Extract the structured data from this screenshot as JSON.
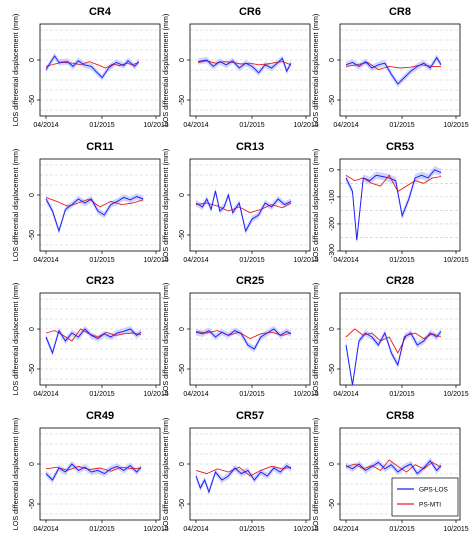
{
  "chart_data": {
    "type": "line",
    "layout": "4x3 grid of small-multiple time-series panels",
    "ylabel": "LOS differential displacement (mm)",
    "x_ticks": [
      "04/2014",
      "01/2015",
      "10/2015"
    ],
    "y_ticks_default": [
      0,
      -50
    ],
    "y_ticks_cr53": [
      0,
      -100,
      -200,
      -300
    ],
    "ylim_default": [
      -70,
      45
    ],
    "ylim_cr53": [
      -300,
      40
    ],
    "xlim": [
      0,
      100
    ],
    "grid": "dashed horizontal",
    "legend": {
      "placement": "bottom-right of last panel",
      "entries": [
        {
          "label": "GPS-LOS",
          "color": "#1f1fff"
        },
        {
          "label": "PS-MTI",
          "color": "#e8211e"
        }
      ]
    },
    "band_color": "#aab4f5",
    "panels": [
      {
        "title": "CR4",
        "row": 0,
        "col": 0,
        "gps": {
          "x": [
            0,
            8,
            12,
            20,
            25,
            30,
            35,
            42,
            46,
            52,
            58,
            65,
            72,
            76,
            82,
            86
          ],
          "y": [
            -12,
            5,
            -3,
            -2,
            -8,
            -1,
            -6,
            -8,
            -14,
            -22,
            -10,
            -3,
            -7,
            -1,
            -8,
            -2
          ]
        },
        "ps": {
          "x": [
            0,
            8,
            15,
            25,
            32,
            40,
            48,
            55,
            62,
            68,
            75,
            80,
            86
          ],
          "y": [
            -8,
            -5,
            -3,
            -4,
            -6,
            -2,
            -6,
            -10,
            -5,
            -7,
            -4,
            -6,
            -3
          ]
        }
      },
      {
        "title": "CR6",
        "row": 0,
        "col": 1,
        "gps": {
          "x": [
            2,
            10,
            16,
            22,
            28,
            34,
            40,
            46,
            52,
            58,
            64,
            70,
            76,
            80,
            84,
            88
          ],
          "y": [
            -2,
            0,
            -8,
            -2,
            -6,
            -1,
            -10,
            -4,
            -8,
            -16,
            -6,
            -10,
            -3,
            2,
            -14,
            -4
          ]
        },
        "ps": {
          "x": [
            2,
            10,
            18,
            26,
            34,
            42,
            50,
            58,
            66,
            74,
            80,
            88
          ],
          "y": [
            -3,
            -1,
            -4,
            -2,
            -3,
            -5,
            -4,
            -6,
            -5,
            -3,
            -2,
            -6
          ]
        }
      },
      {
        "title": "CR8",
        "row": 0,
        "col": 2,
        "gps": {
          "x": [
            0,
            6,
            12,
            18,
            24,
            30,
            36,
            42,
            48,
            54,
            60,
            66,
            72,
            78,
            84,
            88
          ],
          "y": [
            -6,
            -3,
            -8,
            -2,
            -10,
            -6,
            -4,
            -18,
            -30,
            -22,
            -14,
            -8,
            -4,
            -10,
            3,
            -6
          ]
        },
        "ps": {
          "x": [
            0,
            10,
            20,
            30,
            40,
            50,
            60,
            70,
            80,
            88
          ],
          "y": [
            -8,
            -6,
            -3,
            -12,
            -8,
            -10,
            -9,
            -6,
            -8,
            -8
          ]
        }
      },
      {
        "title": "CR11",
        "row": 1,
        "col": 0,
        "gps": {
          "x": [
            0,
            6,
            12,
            18,
            24,
            30,
            36,
            42,
            48,
            54,
            60,
            66,
            72,
            78,
            84,
            90
          ],
          "y": [
            -5,
            -20,
            -45,
            -18,
            -12,
            -5,
            -10,
            -5,
            -20,
            -25,
            -12,
            -8,
            -3,
            -6,
            -2,
            -5
          ]
        },
        "ps": {
          "x": [
            0,
            10,
            20,
            30,
            40,
            50,
            60,
            70,
            80,
            90
          ],
          "y": [
            -3,
            -8,
            -14,
            -10,
            -5,
            -15,
            -8,
            -12,
            -10,
            -6
          ]
        }
      },
      {
        "title": "CR13",
        "row": 1,
        "col": 1,
        "gps": {
          "x": [
            0,
            6,
            10,
            14,
            18,
            22,
            26,
            30,
            34,
            40,
            46,
            52,
            58,
            64,
            70,
            76,
            82,
            88
          ],
          "y": [
            -10,
            -15,
            -5,
            -18,
            5,
            -20,
            -15,
            0,
            -22,
            -10,
            -45,
            -30,
            -25,
            -10,
            -15,
            -5,
            -12,
            -8
          ]
        },
        "ps": {
          "x": [
            0,
            10,
            20,
            30,
            40,
            50,
            60,
            70,
            80,
            88
          ],
          "y": [
            -12,
            -10,
            -14,
            -20,
            -15,
            -22,
            -18,
            -12,
            -16,
            -10
          ]
        }
      },
      {
        "title": "CR53",
        "row": 1,
        "col": 2,
        "gps": {
          "x": [
            0,
            6,
            10,
            16,
            22,
            28,
            34,
            40,
            46,
            52,
            58,
            64,
            70,
            76,
            82,
            88
          ],
          "y": [
            -30,
            -80,
            -260,
            -30,
            -40,
            -20,
            -25,
            -30,
            -40,
            -170,
            -110,
            -30,
            -20,
            -30,
            0,
            -10
          ]
        },
        "ps": {
          "x": [
            0,
            8,
            16,
            24,
            32,
            40,
            48,
            56,
            64,
            72,
            80,
            88
          ],
          "y": [
            -20,
            -40,
            -30,
            -50,
            -60,
            -20,
            -80,
            -60,
            -40,
            -50,
            -30,
            -25
          ]
        }
      },
      {
        "title": "CR23",
        "row": 2,
        "col": 0,
        "gps": {
          "x": [
            0,
            6,
            12,
            18,
            24,
            30,
            36,
            42,
            48,
            54,
            60,
            66,
            72,
            78,
            84,
            88
          ],
          "y": [
            -10,
            -30,
            -2,
            -15,
            -5,
            -10,
            0,
            -8,
            -12,
            -6,
            -10,
            -5,
            -3,
            0,
            -8,
            -4
          ]
        },
        "ps": {
          "x": [
            0,
            8,
            16,
            24,
            32,
            40,
            48,
            56,
            64,
            72,
            80,
            88
          ],
          "y": [
            -5,
            -2,
            -8,
            -15,
            0,
            -6,
            -10,
            -4,
            -8,
            -6,
            -5,
            -7
          ]
        }
      },
      {
        "title": "CR25",
        "row": 2,
        "col": 1,
        "gps": {
          "x": [
            0,
            6,
            12,
            18,
            24,
            30,
            36,
            42,
            48,
            54,
            60,
            66,
            72,
            78,
            84,
            88
          ],
          "y": [
            -4,
            -6,
            -2,
            -10,
            -4,
            -8,
            -2,
            -6,
            -20,
            -25,
            -10,
            -5,
            0,
            -8,
            -3,
            -6
          ]
        },
        "ps": {
          "x": [
            0,
            10,
            20,
            30,
            40,
            50,
            60,
            70,
            80,
            88
          ],
          "y": [
            -3,
            -5,
            -2,
            -8,
            -4,
            -12,
            -6,
            -4,
            -8,
            -5
          ]
        }
      },
      {
        "title": "CR28",
        "row": 2,
        "col": 2,
        "gps": {
          "x": [
            0,
            6,
            12,
            18,
            24,
            30,
            36,
            42,
            48,
            54,
            60,
            66,
            72,
            78,
            84,
            88
          ],
          "y": [
            -20,
            -70,
            -15,
            -5,
            -10,
            -20,
            -5,
            -30,
            -45,
            -10,
            -5,
            -20,
            -15,
            -5,
            -10,
            -3
          ]
        },
        "ps": {
          "x": [
            0,
            8,
            16,
            24,
            32,
            40,
            48,
            56,
            64,
            72,
            80,
            88
          ],
          "y": [
            -10,
            0,
            -8,
            -5,
            -15,
            -10,
            -30,
            -8,
            -5,
            -12,
            -6,
            -10
          ]
        }
      },
      {
        "title": "CR49",
        "row": 3,
        "col": 0,
        "gps": {
          "x": [
            0,
            6,
            12,
            18,
            24,
            30,
            36,
            42,
            48,
            54,
            60,
            66,
            72,
            78,
            84,
            88
          ],
          "y": [
            -12,
            -20,
            -5,
            -10,
            0,
            -8,
            -4,
            -10,
            -8,
            -12,
            -6,
            -3,
            -8,
            -2,
            -10,
            -4
          ]
        },
        "ps": {
          "x": [
            0,
            10,
            20,
            30,
            40,
            50,
            60,
            70,
            80,
            88
          ],
          "y": [
            -6,
            -4,
            -8,
            -3,
            -7,
            -5,
            -9,
            -4,
            -6,
            -5
          ]
        }
      },
      {
        "title": "CR57",
        "row": 3,
        "col": 1,
        "gps": {
          "x": [
            0,
            4,
            8,
            12,
            18,
            24,
            30,
            36,
            42,
            48,
            54,
            60,
            66,
            72,
            78,
            84,
            88
          ],
          "y": [
            -15,
            -30,
            -20,
            -35,
            -10,
            -20,
            -15,
            -5,
            -12,
            -8,
            -20,
            -10,
            -15,
            -5,
            -10,
            -2,
            -6
          ]
        },
        "ps": {
          "x": [
            0,
            10,
            20,
            30,
            40,
            50,
            60,
            70,
            80,
            88
          ],
          "y": [
            -8,
            -12,
            -6,
            -10,
            -4,
            -15,
            -8,
            -3,
            -6,
            -4
          ]
        }
      },
      {
        "title": "CR58",
        "row": 3,
        "col": 2,
        "gps": {
          "x": [
            0,
            6,
            12,
            18,
            24,
            30,
            36,
            42,
            48,
            54,
            60,
            66,
            72,
            78,
            84,
            88
          ],
          "y": [
            -2,
            -6,
            0,
            -8,
            -3,
            2,
            -6,
            -1,
            -10,
            -4,
            0,
            -12,
            -5,
            4,
            -8,
            -2
          ]
        },
        "ps": {
          "x": [
            0,
            8,
            16,
            24,
            32,
            40,
            48,
            56,
            64,
            72,
            80,
            88
          ],
          "y": [
            -4,
            0,
            -6,
            -2,
            -8,
            5,
            -3,
            -10,
            -1,
            -6,
            2,
            -4
          ]
        }
      }
    ]
  }
}
